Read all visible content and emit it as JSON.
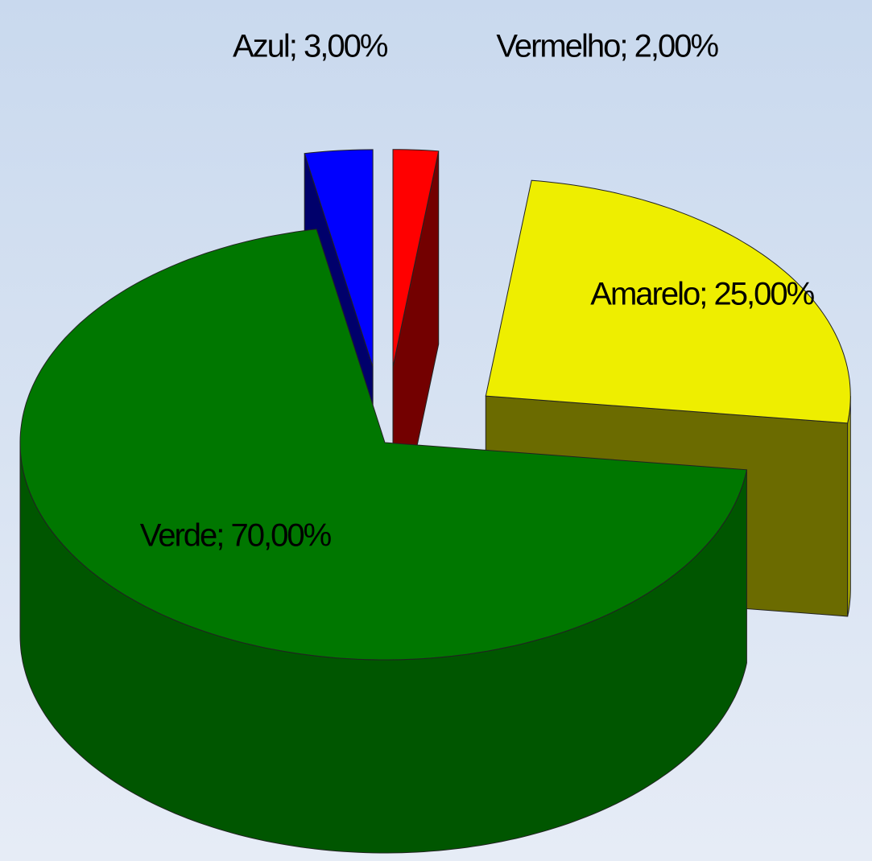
{
  "chart_data": {
    "type": "pie3d",
    "categories": [
      "Vermelho",
      "Amarelo",
      "Verde",
      "Azul"
    ],
    "values": [
      2,
      25,
      70,
      3
    ],
    "value_labels": [
      "Vermelho; 2,00%",
      "Amarelo; 25,00%",
      "Verde; 70,00%",
      "Azul; 3,00%"
    ],
    "colors": [
      "#ff0000",
      "#eeee00",
      "#007700",
      "#0000ff"
    ]
  }
}
